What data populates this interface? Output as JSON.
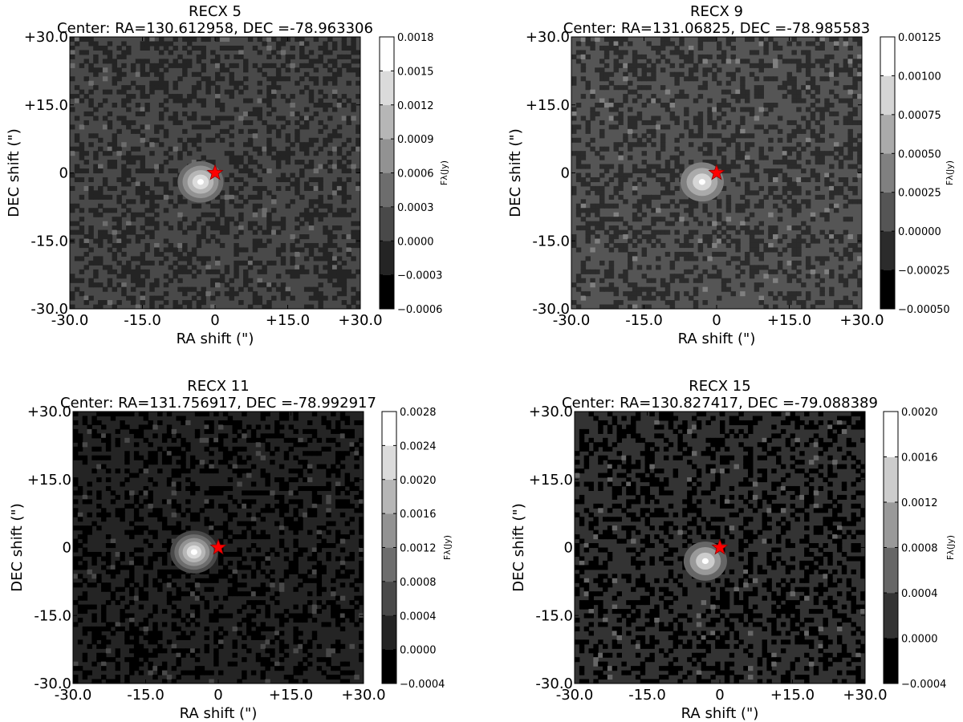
{
  "chart_data": [
    {
      "type": "heatmap",
      "title": "RECX 5",
      "subtitle": "Center: RA=130.612958, DEC =-78.963306",
      "xlabel": "RA shift (\")",
      "ylabel": "DEC shift (\")",
      "xlim": [
        -30,
        30
      ],
      "ylim": [
        -30,
        30
      ],
      "x_ticks": [
        "-30.0",
        "-15.0",
        "0",
        "+15.0",
        "+30.0"
      ],
      "y_ticks": [
        "-30.0",
        "-15.0",
        "0",
        "+15.0",
        "+30.0"
      ],
      "colorbar_label": "Fλ(Jy)",
      "colorbar_levels": [
        "−0.0006",
        "−0.0003",
        "0.0000",
        "0.0003",
        "0.0006",
        "0.0009",
        "0.0012",
        "0.0015",
        "0.0018"
      ],
      "source_peak": {
        "x": -3,
        "y": -2
      },
      "marker": {
        "symbol": "star",
        "color": "#ff0000",
        "x": 0,
        "y": 0
      },
      "colormap": "gray",
      "grid": false
    },
    {
      "type": "heatmap",
      "title": "RECX 9",
      "subtitle": "Center: RA=131.06825, DEC =-78.985583",
      "xlabel": "RA shift (\")",
      "ylabel": "DEC shift (\")",
      "xlim": [
        -30,
        30
      ],
      "ylim": [
        -30,
        30
      ],
      "x_ticks": [
        "-30.0",
        "-15.0",
        "0",
        "+15.0",
        "+30.0"
      ],
      "y_ticks": [
        "-30.0",
        "-15.0",
        "0",
        "+15.0",
        "+30.0"
      ],
      "colorbar_label": "Fλ(Jy)",
      "colorbar_levels": [
        "−0.00050",
        "−0.00025",
        "0.00000",
        "0.00025",
        "0.00050",
        "0.00075",
        "0.00100",
        "0.00125"
      ],
      "source_peak": {
        "x": -3,
        "y": -2
      },
      "marker": {
        "symbol": "star",
        "color": "#ff0000",
        "x": 0,
        "y": 0
      },
      "colormap": "gray",
      "grid": false
    },
    {
      "type": "heatmap",
      "title": "RECX 11",
      "subtitle": "Center: RA=131.756917, DEC =-78.992917",
      "xlabel": "RA shift (\")",
      "ylabel": "DEC shift (\")",
      "xlim": [
        -30,
        30
      ],
      "ylim": [
        -30,
        30
      ],
      "x_ticks": [
        "-30.0",
        "-15.0",
        "0",
        "+15.0",
        "+30.0"
      ],
      "y_ticks": [
        "-30.0",
        "-15.0",
        "0",
        "+15.0",
        "+30.0"
      ],
      "colorbar_label": "Fλ(Jy)",
      "colorbar_levels": [
        "−0.0004",
        "0.0000",
        "0.0004",
        "0.0008",
        "0.0012",
        "0.0016",
        "0.0020",
        "0.0024",
        "0.0028"
      ],
      "source_peak": {
        "x": -5,
        "y": -1
      },
      "marker": {
        "symbol": "star",
        "color": "#ff0000",
        "x": 0,
        "y": 0
      },
      "colormap": "gray",
      "grid": false
    },
    {
      "type": "heatmap",
      "title": "RECX 15",
      "subtitle": "Center: RA=130.827417, DEC =-79.088389",
      "xlabel": "RA shift (\")",
      "ylabel": "DEC shift (\")",
      "xlim": [
        -30,
        30
      ],
      "ylim": [
        -30,
        30
      ],
      "x_ticks": [
        "-30.0",
        "-15.0",
        "0",
        "+15.0",
        "+30.0"
      ],
      "y_ticks": [
        "-30.0",
        "-15.0",
        "0",
        "+15.0",
        "+30.0"
      ],
      "colorbar_label": "Fλ(Jy)",
      "colorbar_levels": [
        "−0.0004",
        "0.0000",
        "0.0004",
        "0.0008",
        "0.0012",
        "0.0016",
        "0.0020"
      ],
      "source_peak": {
        "x": -3,
        "y": -3
      },
      "marker": {
        "symbol": "star",
        "color": "#ff0000",
        "x": 0,
        "y": 0
      },
      "colormap": "gray",
      "grid": false
    }
  ]
}
